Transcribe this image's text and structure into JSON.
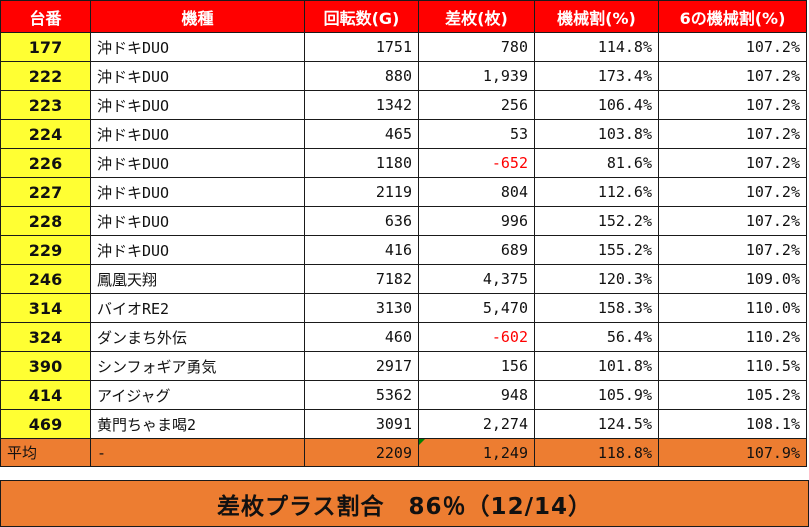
{
  "headers": [
    "台番",
    "機種",
    "回転数(G)",
    "差枚(枚)",
    "機械割(%)",
    "6の機械割(%)"
  ],
  "rows": [
    {
      "no": "177",
      "model": "沖ドキDUO",
      "games": "1751",
      "diff": "780",
      "rate": "114.8%",
      "rate6": "107.2%",
      "neg": false
    },
    {
      "no": "222",
      "model": "沖ドキDUO",
      "games": "880",
      "diff": "1,939",
      "rate": "173.4%",
      "rate6": "107.2%",
      "neg": false
    },
    {
      "no": "223",
      "model": "沖ドキDUO",
      "games": "1342",
      "diff": "256",
      "rate": "106.4%",
      "rate6": "107.2%",
      "neg": false
    },
    {
      "no": "224",
      "model": "沖ドキDUO",
      "games": "465",
      "diff": "53",
      "rate": "103.8%",
      "rate6": "107.2%",
      "neg": false
    },
    {
      "no": "226",
      "model": "沖ドキDUO",
      "games": "1180",
      "diff": "-652",
      "rate": "81.6%",
      "rate6": "107.2%",
      "neg": true
    },
    {
      "no": "227",
      "model": "沖ドキDUO",
      "games": "2119",
      "diff": "804",
      "rate": "112.6%",
      "rate6": "107.2%",
      "neg": false
    },
    {
      "no": "228",
      "model": "沖ドキDUO",
      "games": "636",
      "diff": "996",
      "rate": "152.2%",
      "rate6": "107.2%",
      "neg": false
    },
    {
      "no": "229",
      "model": "沖ドキDUO",
      "games": "416",
      "diff": "689",
      "rate": "155.2%",
      "rate6": "107.2%",
      "neg": false
    },
    {
      "no": "246",
      "model": "鳳凰天翔",
      "games": "7182",
      "diff": "4,375",
      "rate": "120.3%",
      "rate6": "109.0%",
      "neg": false
    },
    {
      "no": "314",
      "model": "バイオRE2",
      "games": "3130",
      "diff": "5,470",
      "rate": "158.3%",
      "rate6": "110.0%",
      "neg": false
    },
    {
      "no": "324",
      "model": "ダンまち外伝",
      "games": "460",
      "diff": "-602",
      "rate": "56.4%",
      "rate6": "110.2%",
      "neg": true
    },
    {
      "no": "390",
      "model": "シンフォギア勇気",
      "games": "2917",
      "diff": "156",
      "rate": "101.8%",
      "rate6": "110.5%",
      "neg": false
    },
    {
      "no": "414",
      "model": "アイジャグ",
      "games": "5362",
      "diff": "948",
      "rate": "105.9%",
      "rate6": "105.2%",
      "neg": false
    },
    {
      "no": "469",
      "model": "黄門ちゃま喝2",
      "games": "3091",
      "diff": "2,274",
      "rate": "124.5%",
      "rate6": "108.1%",
      "neg": false
    }
  ],
  "average": {
    "label": "平均",
    "model": "-",
    "games": "2209",
    "diff": "1,249",
    "rate": "118.8%",
    "rate6": "107.9%"
  },
  "footer": "差枚プラス割合　86％（12/14）",
  "colors": {
    "header_bg": "#ff0000",
    "number_bg": "#ffff33",
    "average_bg": "#ed7d31",
    "negative": "#ff0000"
  }
}
